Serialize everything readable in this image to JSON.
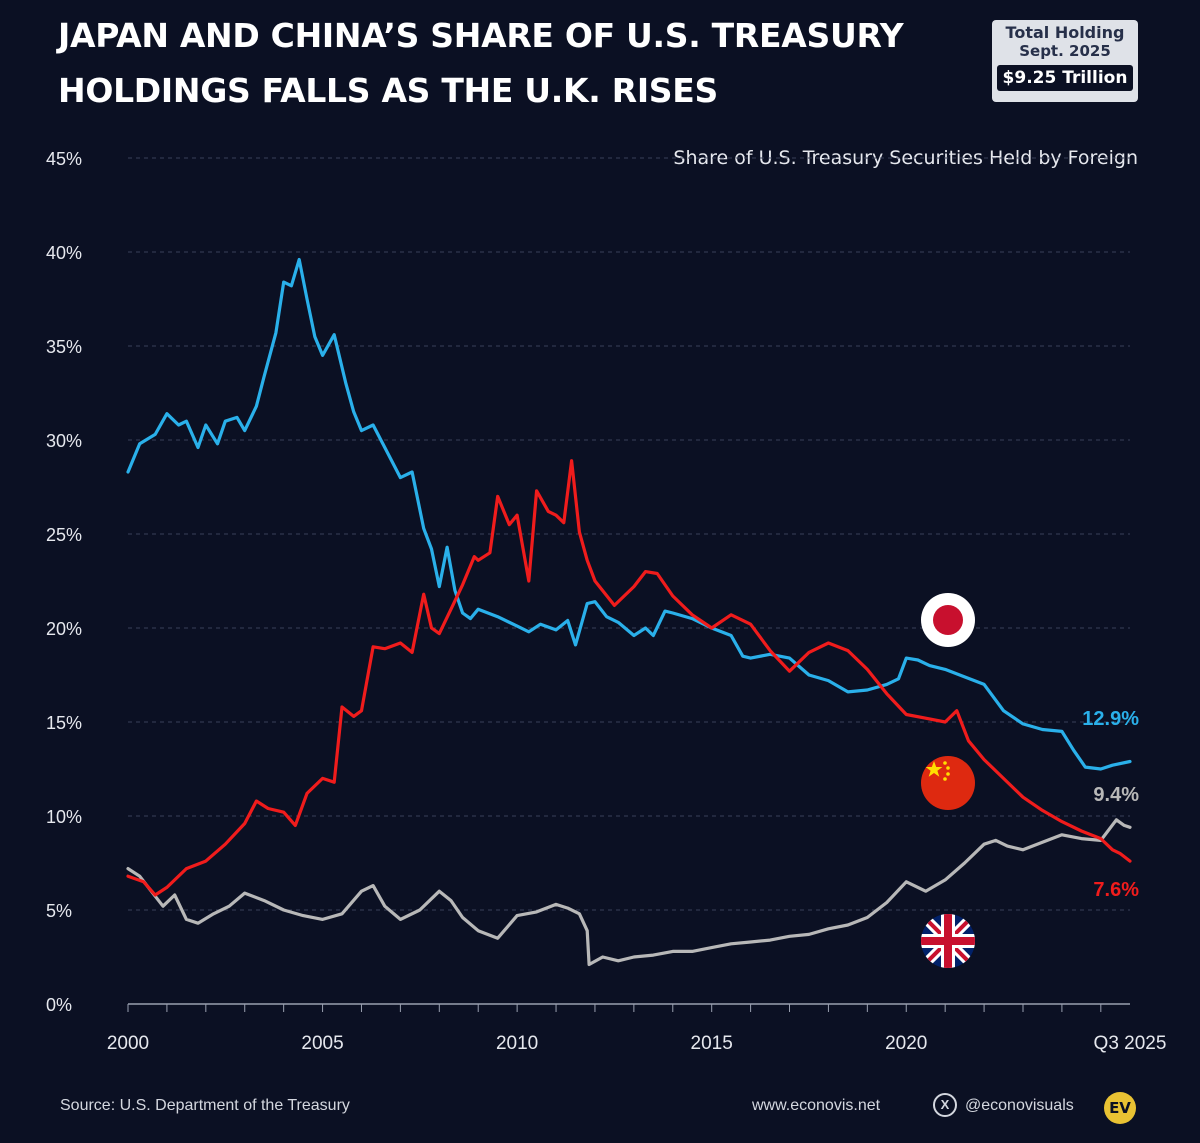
{
  "header": {
    "title_line1": "JAPAN AND CHINA’S SHARE OF U.S. TREASURY",
    "title_line2": "HOLDINGS FALLS AS THE U.K. RISES",
    "badge_line1": "Total Holding",
    "badge_line2": "Sept. 2025",
    "badge_value": "$9.25 Trillion"
  },
  "footer": {
    "source": "Source: U.S. Department of the Treasury",
    "website": "www.econovis.net",
    "x_icon": "x-logo-icon",
    "handle": "@econovisuals",
    "logo_text": "EV"
  },
  "colors": {
    "background": "#0b1023",
    "japan": "#2ab0ea",
    "china": "#f01c1c",
    "uk": "#b8b8b8",
    "grid": "#3a4058",
    "axis_text": "#e6e8ee"
  },
  "chart_data": {
    "type": "line",
    "subtitle": "Share of U.S. Treasury Securities Held by Foreign",
    "ylim": [
      0,
      45
    ],
    "yticks": [
      0,
      5,
      10,
      15,
      20,
      25,
      30,
      35,
      40,
      45
    ],
    "ytick_labels": [
      "0%",
      "5%",
      "10%",
      "15%",
      "20%",
      "25%",
      "30%",
      "35%",
      "40%",
      "45%"
    ],
    "xlim": [
      2000,
      2025.75
    ],
    "xticks": [
      2000,
      2005,
      2010,
      2015,
      2020,
      2025.75
    ],
    "xtick_labels": [
      "2000",
      "2005",
      "2010",
      "2015",
      "2020",
      "Q3 2025"
    ],
    "grid": "horizontal dashed",
    "series": [
      {
        "key": "japan",
        "flag_icon": "japan-flag-icon",
        "end_label": "12.9%",
        "x": [
          2000.0,
          2000.3,
          2000.7,
          2001.0,
          2001.3,
          2001.5,
          2001.8,
          2002.0,
          2002.3,
          2002.5,
          2002.8,
          2003.0,
          2003.3,
          2003.5,
          2003.8,
          2004.0,
          2004.2,
          2004.4,
          2004.6,
          2004.8,
          2005.0,
          2005.3,
          2005.6,
          2005.8,
          2006.0,
          2006.3,
          2006.6,
          2007.0,
          2007.3,
          2007.6,
          2007.8,
          2008.0,
          2008.2,
          2008.4,
          2008.6,
          2008.8,
          2009.0,
          2009.5,
          2010.0,
          2010.3,
          2010.6,
          2011.0,
          2011.3,
          2011.5,
          2011.8,
          2012.0,
          2012.3,
          2012.6,
          2013.0,
          2013.3,
          2013.5,
          2013.8,
          2014.0,
          2014.5,
          2015.0,
          2015.5,
          2015.8,
          2016.0,
          2016.5,
          2017.0,
          2017.5,
          2018.0,
          2018.5,
          2019.0,
          2019.5,
          2019.8,
          2020.0,
          2020.3,
          2020.6,
          2021.0,
          2021.5,
          2022.0,
          2022.5,
          2023.0,
          2023.5,
          2024.0,
          2024.3,
          2024.6,
          2025.0,
          2025.3,
          2025.75
        ],
        "y": [
          28.3,
          29.8,
          30.3,
          31.4,
          30.8,
          31.0,
          29.6,
          30.8,
          29.8,
          31.0,
          31.2,
          30.5,
          31.8,
          33.4,
          35.7,
          38.4,
          38.2,
          39.6,
          37.5,
          35.5,
          34.5,
          35.6,
          33.0,
          31.5,
          30.5,
          30.8,
          29.6,
          28.0,
          28.3,
          25.3,
          24.2,
          22.2,
          24.3,
          22.0,
          20.8,
          20.5,
          21.0,
          20.6,
          20.1,
          19.8,
          20.2,
          19.9,
          20.4,
          19.1,
          21.3,
          21.4,
          20.6,
          20.3,
          19.6,
          20.0,
          19.6,
          20.9,
          20.8,
          20.5,
          20.0,
          19.6,
          18.5,
          18.4,
          18.6,
          18.4,
          17.5,
          17.2,
          16.6,
          16.7,
          17.0,
          17.3,
          18.4,
          18.3,
          18.0,
          17.8,
          17.4,
          17.0,
          15.6,
          14.9,
          14.6,
          14.5,
          13.5,
          12.6,
          12.5,
          12.7,
          12.9
        ]
      },
      {
        "key": "china",
        "flag_icon": "china-flag-icon",
        "end_label": "7.6%",
        "x": [
          2000.0,
          2000.4,
          2000.7,
          2001.0,
          2001.5,
          2002.0,
          2002.5,
          2003.0,
          2003.3,
          2003.6,
          2004.0,
          2004.3,
          2004.6,
          2005.0,
          2005.3,
          2005.5,
          2005.8,
          2006.0,
          2006.3,
          2006.6,
          2007.0,
          2007.3,
          2007.6,
          2007.8,
          2008.0,
          2008.3,
          2008.6,
          2008.9,
          2009.0,
          2009.3,
          2009.5,
          2009.8,
          2010.0,
          2010.3,
          2010.5,
          2010.8,
          2011.0,
          2011.2,
          2011.4,
          2011.6,
          2011.8,
          2012.0,
          2012.5,
          2013.0,
          2013.3,
          2013.6,
          2014.0,
          2014.5,
          2015.0,
          2015.5,
          2016.0,
          2016.5,
          2017.0,
          2017.5,
          2018.0,
          2018.5,
          2019.0,
          2019.5,
          2020.0,
          2020.5,
          2021.0,
          2021.3,
          2021.6,
          2022.0,
          2022.5,
          2023.0,
          2023.5,
          2024.0,
          2024.5,
          2025.0,
          2025.3,
          2025.5,
          2025.75
        ],
        "y": [
          6.8,
          6.5,
          5.8,
          6.2,
          7.2,
          7.6,
          8.5,
          9.6,
          10.8,
          10.4,
          10.2,
          9.5,
          11.2,
          12.0,
          11.8,
          15.8,
          15.3,
          15.6,
          19.0,
          18.9,
          19.2,
          18.7,
          21.8,
          20.0,
          19.7,
          21.0,
          22.3,
          23.8,
          23.6,
          24.0,
          27.0,
          25.5,
          26.0,
          22.5,
          27.3,
          26.2,
          26.0,
          25.6,
          28.9,
          25.1,
          23.6,
          22.5,
          21.2,
          22.2,
          23.0,
          22.9,
          21.7,
          20.7,
          20.0,
          20.7,
          20.2,
          18.8,
          17.7,
          18.7,
          19.2,
          18.8,
          17.8,
          16.5,
          15.4,
          15.2,
          15.0,
          15.6,
          14.0,
          13.0,
          12.0,
          11.0,
          10.3,
          9.7,
          9.2,
          8.8,
          8.2,
          8.0,
          7.6
        ]
      },
      {
        "key": "uk",
        "flag_icon": "uk-flag-icon",
        "end_label": "9.4%",
        "x": [
          2000.0,
          2000.3,
          2000.6,
          2000.9,
          2001.2,
          2001.5,
          2001.8,
          2002.2,
          2002.6,
          2003.0,
          2003.5,
          2004.0,
          2004.5,
          2005.0,
          2005.5,
          2006.0,
          2006.3,
          2006.6,
          2007.0,
          2007.5,
          2008.0,
          2008.3,
          2008.6,
          2009.0,
          2009.5,
          2010.0,
          2010.5,
          2011.0,
          2011.3,
          2011.6,
          2011.8,
          2011.85,
          2012.2,
          2012.6,
          2013.0,
          2013.5,
          2014.0,
          2014.5,
          2015.0,
          2015.5,
          2016.0,
          2016.5,
          2017.0,
          2017.5,
          2018.0,
          2018.5,
          2019.0,
          2019.5,
          2020.0,
          2020.5,
          2021.0,
          2021.5,
          2022.0,
          2022.3,
          2022.6,
          2023.0,
          2023.5,
          2024.0,
          2024.5,
          2025.0,
          2025.4,
          2025.6,
          2025.75
        ],
        "y": [
          7.2,
          6.8,
          6.0,
          5.2,
          5.8,
          4.5,
          4.3,
          4.8,
          5.2,
          5.9,
          5.5,
          5.0,
          4.7,
          4.5,
          4.8,
          6.0,
          6.3,
          5.2,
          4.5,
          5.0,
          6.0,
          5.5,
          4.6,
          3.9,
          3.5,
          4.7,
          4.9,
          5.3,
          5.1,
          4.8,
          3.9,
          2.1,
          2.5,
          2.3,
          2.5,
          2.6,
          2.8,
          2.8,
          3.0,
          3.2,
          3.3,
          3.4,
          3.6,
          3.7,
          4.0,
          4.2,
          4.6,
          5.4,
          6.5,
          6.0,
          6.6,
          7.5,
          8.5,
          8.7,
          8.4,
          8.2,
          8.6,
          9.0,
          8.8,
          8.7,
          9.8,
          9.5,
          9.4
        ]
      }
    ]
  }
}
